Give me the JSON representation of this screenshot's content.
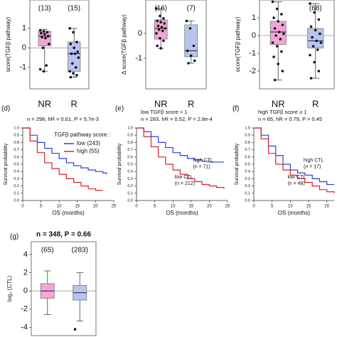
{
  "chart_data": [
    {
      "type": "box",
      "y_label": "score(TGFβ pathway)",
      "categories": [
        "NR",
        "R"
      ],
      "count_labels": [
        "(13)",
        "(15)"
      ],
      "ylim": [
        -2.1,
        2.45
      ],
      "yticks": [
        -1,
        0,
        1
      ],
      "refline": 0,
      "boxes": [
        {
          "color": "#f2a5d6",
          "q1": 0.1,
          "median": 0.6,
          "q3": 0.85,
          "whisker_low": -1.2,
          "whisker_high": 0.95,
          "points": [
            0.9,
            0.85,
            0.8,
            0.75,
            0.7,
            0.6,
            0.55,
            0.5,
            0.2,
            0.0,
            -0.9,
            -1.1,
            -1.2
          ]
        },
        {
          "color": "#b9c3f0",
          "q1": -1.2,
          "median": -0.3,
          "q3": 0.3,
          "whisker_low": -1.5,
          "whisker_high": 1.0,
          "points": [
            1.0,
            0.8,
            0.3,
            0.2,
            0.0,
            -0.2,
            -0.3,
            -0.3,
            -0.5,
            -0.8,
            -1.0,
            -1.2,
            -1.3,
            -1.4,
            -1.5
          ]
        }
      ]
    },
    {
      "type": "box",
      "y_label": "Δ score(TGFβ pathway)",
      "categories": [
        "NR",
        "R"
      ],
      "count_labels": [
        "(16)",
        "(7)"
      ],
      "ylim": [
        -2.23,
        1.34
      ],
      "yticks": [
        -1,
        0
      ],
      "boxes": [
        {
          "color": "#f2a5d6",
          "q1": -0.23,
          "median": 0.2,
          "q3": 0.54,
          "whisker_low": -0.6,
          "whisker_high": 1.0,
          "points": [
            1.0,
            0.7,
            0.6,
            0.5,
            0.45,
            0.4,
            0.3,
            0.25,
            0.2,
            0.15,
            0.1,
            0.0,
            -0.2,
            -0.3,
            -0.5,
            -0.6
          ]
        },
        {
          "color": "#b9c3f0",
          "q1": -0.94,
          "median": -0.7,
          "q3": 0.34,
          "whisker_low": -1.2,
          "whisker_high": 0.5,
          "points": [
            0.5,
            0.2,
            -0.5,
            -0.7,
            -0.9,
            -1.1,
            -1.2
          ]
        }
      ]
    },
    {
      "type": "box",
      "y_label": "score(TGFβ pathway)",
      "categories": [
        "NR",
        "R"
      ],
      "count_labels": [
        null,
        "(68)"
      ],
      "ylim": [
        -3,
        2
      ],
      "yticks": [
        -2,
        -1,
        0,
        1
      ],
      "refline": 0,
      "boxes": [
        {
          "color": "#f2a5d6",
          "q1": -0.5,
          "median": 0.2,
          "q3": 0.8,
          "whisker_low": -2.5,
          "whisker_high": 1.9,
          "points": [
            1.9,
            1.5,
            1.2,
            1.0,
            0.8,
            0.6,
            0.4,
            0.2,
            0.1,
            0.0,
            -0.2,
            -0.4,
            -0.6,
            -0.9,
            -1.2,
            -1.6,
            -2.0,
            -2.5
          ]
        },
        {
          "color": "#b9c3f0",
          "q1": -0.7,
          "median": -0.3,
          "q3": 0.4,
          "whisker_low": -2.4,
          "whisker_high": 1.8,
          "points": [
            1.8,
            1.3,
            0.9,
            0.5,
            0.3,
            0.1,
            -0.1,
            -0.3,
            -0.4,
            -0.6,
            -0.8,
            -1.1,
            -1.5,
            -2.0,
            -2.4
          ]
        }
      ]
    },
    {
      "type": "line",
      "step": true,
      "panel": "(d)",
      "title": "n = 298, hR = 0.61, P = 5.7e-3",
      "legend_title": "TGFβ pathway score :",
      "x_label": "OS (months)",
      "y_label": "Survival probability",
      "xlim": [
        0,
        25
      ],
      "xticks": [
        0,
        5,
        10,
        15,
        20,
        25
      ],
      "ylim": [
        0,
        1
      ],
      "yticks": [
        {
          "value": 0,
          "label": "0.0"
        },
        0.1,
        0.2,
        0.3,
        0.4,
        0.5,
        0.6,
        0.7,
        0.8,
        0.9,
        {
          "value": 1,
          "label": "1.0"
        }
      ],
      "series": [
        {
          "name": "low (243)",
          "color": "#2a3fd0",
          "x": [
            0,
            2,
            4,
            6,
            8,
            10,
            12,
            14,
            16,
            18,
            20,
            22,
            23
          ],
          "values": [
            1,
            0.9,
            0.8,
            0.72,
            0.65,
            0.58,
            0.52,
            0.48,
            0.45,
            0.42,
            0.4,
            0.38,
            0.36
          ]
        },
        {
          "name": "high (55)",
          "color": "#d8232a",
          "x": [
            0,
            2,
            4,
            6,
            8,
            10,
            12,
            14,
            16,
            18,
            20,
            22
          ],
          "values": [
            1,
            0.82,
            0.66,
            0.52,
            0.44,
            0.36,
            0.3,
            0.25,
            0.2,
            0.16,
            0.14,
            0.14
          ]
        }
      ]
    },
    {
      "type": "line",
      "step": true,
      "panel": "(e)",
      "subtitle": "low TGFβ score < 1",
      "title": "n = 283, hR = 0.52, P = 2.8e-4",
      "x_label": "OS (months)",
      "y_label": "Survival probability",
      "xlim": [
        0,
        25
      ],
      "xticks": [
        0,
        5,
        10,
        15,
        20,
        25
      ],
      "ylim": [
        0,
        1
      ],
      "yticks": [
        {
          "value": 0,
          "label": "0.0"
        },
        0.1,
        0.2,
        0.3,
        0.4,
        0.5,
        0.6,
        0.7,
        0.8,
        0.9,
        {
          "value": 1,
          "label": "1.0"
        }
      ],
      "series": [
        {
          "name": "high CTL",
          "note": "(n = 71)",
          "color": "#2a3fd0",
          "x": [
            0,
            2,
            4,
            6,
            8,
            10,
            12,
            14,
            16,
            18,
            20,
            22,
            24
          ],
          "values": [
            1,
            0.95,
            0.88,
            0.8,
            0.73,
            0.66,
            0.62,
            0.58,
            0.56,
            0.54,
            0.53,
            0.53,
            0.53
          ]
        },
        {
          "name": "low CTL",
          "note": "(n = 212)",
          "color": "#d8232a",
          "x": [
            0,
            2,
            4,
            6,
            8,
            10,
            12,
            14,
            16,
            18,
            20,
            22,
            24
          ],
          "values": [
            1,
            0.88,
            0.74,
            0.6,
            0.5,
            0.42,
            0.36,
            0.3,
            0.26,
            0.22,
            0.2,
            0.18,
            0.16
          ]
        }
      ]
    },
    {
      "type": "line",
      "step": true,
      "panel": "(f)",
      "subtitle": "high TGFβ score ≥ 1",
      "title": "n = 65, hR = 0.79, P = 0.45",
      "x_label": "OS (months)",
      "y_label": "Survival probability",
      "xlim": [
        0,
        22
      ],
      "xticks": [
        0,
        5,
        10,
        15,
        20
      ],
      "ylim": [
        0,
        1
      ],
      "yticks": [
        {
          "value": 0,
          "label": "0.0"
        },
        0.1,
        0.2,
        0.3,
        0.4,
        0.5,
        0.6,
        0.7,
        0.8,
        0.9,
        {
          "value": 1,
          "label": "1.0"
        }
      ],
      "series": [
        {
          "name": "high CTL",
          "note": "(n = 17)",
          "color": "#2a3fd0",
          "x": [
            0,
            2,
            4,
            6,
            8,
            10,
            12,
            14,
            16,
            18,
            20,
            22
          ],
          "values": [
            1,
            0.9,
            0.75,
            0.62,
            0.5,
            0.42,
            0.38,
            0.35,
            0.3,
            0.26,
            0.22,
            0.22
          ]
        },
        {
          "name": "low CTL",
          "note": "(n = 48)",
          "color": "#d8232a",
          "x": [
            0,
            2,
            4,
            6,
            8,
            10,
            12,
            14,
            16,
            18,
            20,
            22
          ],
          "values": [
            1,
            0.85,
            0.65,
            0.5,
            0.42,
            0.35,
            0.3,
            0.25,
            0.2,
            0.15,
            0.12,
            0.1
          ]
        }
      ]
    },
    {
      "type": "box",
      "panel": "(g)",
      "title": "n = 348, P = 0.66",
      "y_label": "log₂ (CTL)",
      "count_labels": [
        "(65)",
        "(283)"
      ],
      "ylim": [
        -4.9,
        5.4
      ],
      "yticks": [
        -4,
        -2,
        0,
        2,
        4
      ],
      "refline": 0,
      "boxes": [
        {
          "color": "#f2a5d6",
          "q1": -0.8,
          "median": 0,
          "q3": 0.8,
          "whisker_low": -2.6,
          "whisker_high": 2.2
        },
        {
          "color": "#b9c3f0",
          "q1": -1.0,
          "median": -0.2,
          "q3": 0.6,
          "whisker_low": -3.3,
          "whisker_high": 2.0,
          "points": [
            -4.2
          ]
        }
      ]
    }
  ]
}
